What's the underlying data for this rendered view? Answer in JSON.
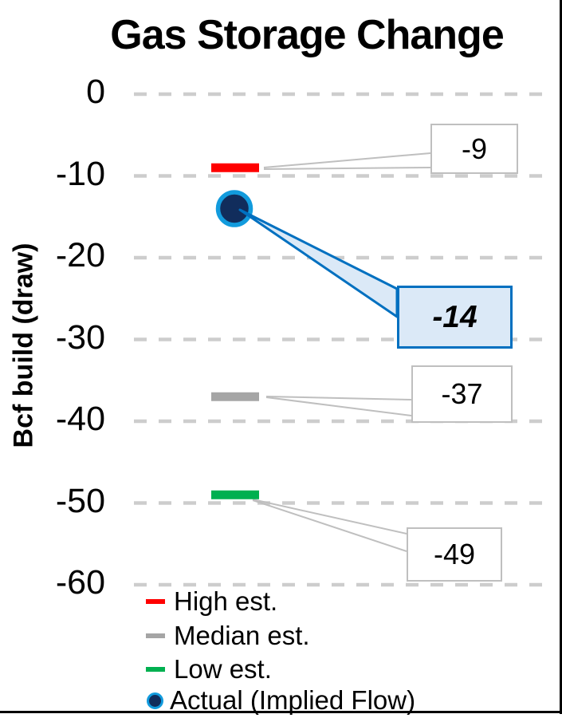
{
  "chart_data": {
    "type": "scatter",
    "title": "Gas Storage Change",
    "ylabel": "Bcf build (draw)",
    "ylim": [
      -60,
      0
    ],
    "yticks": [
      0,
      -10,
      -20,
      -30,
      -40,
      -50,
      -60
    ],
    "grid": "horizontal-dashed",
    "legend_position": "bottom-left",
    "series": [
      {
        "name": "High est.",
        "marker": "dash",
        "color": "#FF0000",
        "value": -9,
        "callout": "-9",
        "callout_style": "plain"
      },
      {
        "name": "Actual (Implied Flow)",
        "marker": "circle",
        "color": "#112D5C",
        "ring_color": "#129BDD",
        "value": -14,
        "callout": "-14",
        "callout_style": "emphasized"
      },
      {
        "name": "Median est.",
        "marker": "dash",
        "color": "#A5A5A5",
        "value": -37,
        "callout": "-37",
        "callout_style": "plain"
      },
      {
        "name": "Low est.",
        "marker": "dash",
        "color": "#00B050",
        "value": -49,
        "callout": "-49",
        "callout_style": "plain"
      }
    ],
    "colors": {
      "gridline": "#CDCDCD",
      "callout_border": "#BFBFBF",
      "emphasis_border": "#0070C0",
      "emphasis_fill": "#DBE9F7",
      "text": "#000000"
    }
  },
  "yaxis": {
    "tick_labels": [
      "0",
      "-10",
      "-20",
      "-30",
      "-40",
      "-50",
      "-60"
    ]
  },
  "legend": {
    "items": [
      {
        "label": "High est.",
        "marker": "dash",
        "color": "#FF0000"
      },
      {
        "label": "Median est.",
        "marker": "dash",
        "color": "#A5A5A5"
      },
      {
        "label": "Low est.",
        "marker": "dash",
        "color": "#00B050"
      },
      {
        "label": "Actual (Implied Flow)",
        "marker": "circle",
        "color": "#112D5C",
        "ring": "#129BDD"
      }
    ]
  }
}
